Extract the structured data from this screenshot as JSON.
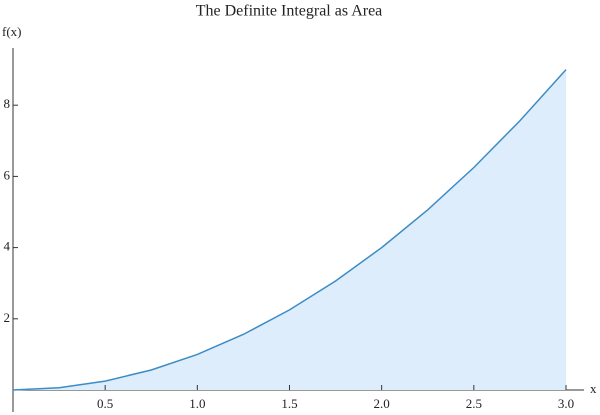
{
  "chart_data": {
    "type": "area",
    "title": "The Definite Integral as Area",
    "x_label": "x",
    "y_label": "f(x)",
    "x": [
      0,
      0.25,
      0.5,
      0.75,
      1,
      1.25,
      1.5,
      1.75,
      2,
      2.25,
      2.5,
      2.75,
      3
    ],
    "series": [
      {
        "color": "#3d8cc4",
        "fill": "#ddedfc",
        "values": [
          0,
          0.0625,
          0.25,
          0.5625,
          1,
          1.5625,
          2.25,
          3.0625,
          4,
          5.0625,
          6.25,
          7.5625,
          9
        ]
      }
    ],
    "xlim": [
      0,
      3
    ],
    "ylim": [
      0,
      9.5
    ],
    "xticks": [
      0.5,
      {
        "value": 1,
        "label": "1.0"
      },
      1.5,
      {
        "value": 2,
        "label": "2.0"
      },
      2.5,
      {
        "value": 3,
        "label": "3.0"
      }
    ],
    "yticks": [
      2,
      4,
      6,
      8
    ],
    "grid": false
  }
}
